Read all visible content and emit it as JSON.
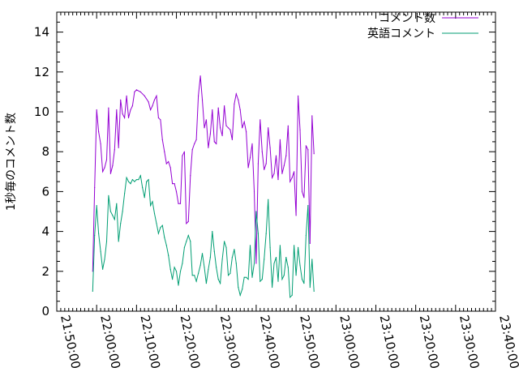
{
  "chart_data": {
    "type": "line",
    "title": "",
    "xlabel": "",
    "ylabel": "1秒毎のコメント数",
    "xlim": [
      "21:50:00",
      "23:40:00"
    ],
    "ylim": [
      0,
      15
    ],
    "x_ticks": [
      "21:50:00",
      "22:00:00",
      "22:10:00",
      "22:20:00",
      "22:30:00",
      "22:40:00",
      "22:50:00",
      "23:00:00",
      "23:10:00",
      "23:20:00",
      "23:30:00",
      "23:40:00"
    ],
    "y_ticks": [
      "0",
      "2",
      "4",
      "6",
      "8",
      "10",
      "12",
      "14"
    ],
    "legend_position": "top-right",
    "grid": false,
    "series": [
      {
        "name": "コメント数",
        "color": "#9400d3",
        "points": [
          [
            "21:59:00",
            2.0
          ],
          [
            "21:59:30",
            6.2
          ],
          [
            "22:00:00",
            10.1
          ],
          [
            "22:00:30",
            9.0
          ],
          [
            "22:01:00",
            8.4
          ],
          [
            "22:01:30",
            7.0
          ],
          [
            "22:02:00",
            7.2
          ],
          [
            "22:02:30",
            7.6
          ],
          [
            "22:03:00",
            10.2
          ],
          [
            "22:03:30",
            6.9
          ],
          [
            "22:04:00",
            7.3
          ],
          [
            "22:04:30",
            8.1
          ],
          [
            "22:05:00",
            10.1
          ],
          [
            "22:05:30",
            8.2
          ],
          [
            "22:06:00",
            10.6
          ],
          [
            "22:06:30",
            9.9
          ],
          [
            "22:07:00",
            9.7
          ],
          [
            "22:07:30",
            10.8
          ],
          [
            "22:08:00",
            9.7
          ],
          [
            "22:08:30",
            10.1
          ],
          [
            "22:09:00",
            10.3
          ],
          [
            "22:09:30",
            11.0
          ],
          [
            "22:10:00",
            11.1
          ],
          [
            "22:11:00",
            11.0
          ],
          [
            "22:12:00",
            10.8
          ],
          [
            "22:13:00",
            10.5
          ],
          [
            "22:13:30",
            10.1
          ],
          [
            "22:14:00",
            10.3
          ],
          [
            "22:14:30",
            10.6
          ],
          [
            "22:15:00",
            10.8
          ],
          [
            "22:15:30",
            9.7
          ],
          [
            "22:16:00",
            9.6
          ],
          [
            "22:16:30",
            8.6
          ],
          [
            "22:17:00",
            8.0
          ],
          [
            "22:17:30",
            7.4
          ],
          [
            "22:18:00",
            7.5
          ],
          [
            "22:18:30",
            7.2
          ],
          [
            "22:19:00",
            6.4
          ],
          [
            "22:19:30",
            6.4
          ],
          [
            "22:20:00",
            6.0
          ],
          [
            "22:20:30",
            5.4
          ],
          [
            "22:21:00",
            5.4
          ],
          [
            "22:21:30",
            7.8
          ],
          [
            "22:22:00",
            8.0
          ],
          [
            "22:22:30",
            4.4
          ],
          [
            "22:23:00",
            4.5
          ],
          [
            "22:23:30",
            6.8
          ],
          [
            "22:24:00",
            8.1
          ],
          [
            "22:24:30",
            8.4
          ],
          [
            "22:25:00",
            8.6
          ],
          [
            "22:25:30",
            10.8
          ],
          [
            "22:26:00",
            11.8
          ],
          [
            "22:26:30",
            10.6
          ],
          [
            "22:27:00",
            9.2
          ],
          [
            "22:27:30",
            9.6
          ],
          [
            "22:28:00",
            8.2
          ],
          [
            "22:28:30",
            8.9
          ],
          [
            "22:29:00",
            10.1
          ],
          [
            "22:29:30",
            8.5
          ],
          [
            "22:30:00",
            8.4
          ],
          [
            "22:30:30",
            10.2
          ],
          [
            "22:31:00",
            9.2
          ],
          [
            "22:31:30",
            8.8
          ],
          [
            "22:32:00",
            10.3
          ],
          [
            "22:32:30",
            9.3
          ],
          [
            "22:33:00",
            9.2
          ],
          [
            "22:33:30",
            9.1
          ],
          [
            "22:34:00",
            8.6
          ],
          [
            "22:34:30",
            10.4
          ],
          [
            "22:35:00",
            10.9
          ],
          [
            "22:35:30",
            10.6
          ],
          [
            "22:36:00",
            10.1
          ],
          [
            "22:36:30",
            9.2
          ],
          [
            "22:37:00",
            9.5
          ],
          [
            "22:37:30",
            9.0
          ],
          [
            "22:38:00",
            7.2
          ],
          [
            "22:38:30",
            7.7
          ],
          [
            "22:39:00",
            8.4
          ],
          [
            "22:39:30",
            6.0
          ],
          [
            "22:40:00",
            2.4
          ],
          [
            "22:40:30",
            7.4
          ],
          [
            "22:41:00",
            9.6
          ],
          [
            "22:41:30",
            8.0
          ],
          [
            "22:42:00",
            7.1
          ],
          [
            "22:42:30",
            7.4
          ],
          [
            "22:43:00",
            9.2
          ],
          [
            "22:43:30",
            8.2
          ],
          [
            "22:44:00",
            6.7
          ],
          [
            "22:44:30",
            6.9
          ],
          [
            "22:45:00",
            7.8
          ],
          [
            "22:45:30",
            6.6
          ],
          [
            "22:46:00",
            8.6
          ],
          [
            "22:46:30",
            6.9
          ],
          [
            "22:47:00",
            7.3
          ],
          [
            "22:47:30",
            7.8
          ],
          [
            "22:48:00",
            9.3
          ],
          [
            "22:48:30",
            6.5
          ],
          [
            "22:49:00",
            6.7
          ],
          [
            "22:49:30",
            7.0
          ],
          [
            "22:50:00",
            4.8
          ],
          [
            "22:50:30",
            10.8
          ],
          [
            "22:51:00",
            9.1
          ],
          [
            "22:51:30",
            6.0
          ],
          [
            "22:52:00",
            5.7
          ],
          [
            "22:52:30",
            8.3
          ],
          [
            "22:53:00",
            8.1
          ],
          [
            "22:53:30",
            3.4
          ],
          [
            "22:54:00",
            9.8
          ],
          [
            "22:54:30",
            7.9
          ]
        ]
      },
      {
        "name": "英語コメント",
        "color": "#009e73",
        "points": [
          [
            "21:59:00",
            1.0
          ],
          [
            "21:59:30",
            3.8
          ],
          [
            "22:00:00",
            5.3
          ],
          [
            "22:00:30",
            3.9
          ],
          [
            "22:01:00",
            3.0
          ],
          [
            "22:01:30",
            2.1
          ],
          [
            "22:02:00",
            2.6
          ],
          [
            "22:02:30",
            3.5
          ],
          [
            "22:03:00",
            5.8
          ],
          [
            "22:03:30",
            5.0
          ],
          [
            "22:04:00",
            4.8
          ],
          [
            "22:04:30",
            4.6
          ],
          [
            "22:05:00",
            5.4
          ],
          [
            "22:05:30",
            3.5
          ],
          [
            "22:06:00",
            4.4
          ],
          [
            "22:06:30",
            5.0
          ],
          [
            "22:07:00",
            5.9
          ],
          [
            "22:07:30",
            6.7
          ],
          [
            "22:08:00",
            6.5
          ],
          [
            "22:08:30",
            6.4
          ],
          [
            "22:09:00",
            6.6
          ],
          [
            "22:09:30",
            6.5
          ],
          [
            "22:10:00",
            6.6
          ],
          [
            "22:10:30",
            6.6
          ],
          [
            "22:11:00",
            6.8
          ],
          [
            "22:11:30",
            6.2
          ],
          [
            "22:12:00",
            5.7
          ],
          [
            "22:12:30",
            6.5
          ],
          [
            "22:13:00",
            6.6
          ],
          [
            "22:13:30",
            5.3
          ],
          [
            "22:14:00",
            5.5
          ],
          [
            "22:14:30",
            4.9
          ],
          [
            "22:15:00",
            4.4
          ],
          [
            "22:15:30",
            3.9
          ],
          [
            "22:16:00",
            4.2
          ],
          [
            "22:16:30",
            4.3
          ],
          [
            "22:17:00",
            3.7
          ],
          [
            "22:17:30",
            3.3
          ],
          [
            "22:18:00",
            2.8
          ],
          [
            "22:18:30",
            2.1
          ],
          [
            "22:19:00",
            1.6
          ],
          [
            "22:19:30",
            2.2
          ],
          [
            "22:20:00",
            2.0
          ],
          [
            "22:20:30",
            1.3
          ],
          [
            "22:21:00",
            2.0
          ],
          [
            "22:21:30",
            2.4
          ],
          [
            "22:22:00",
            3.2
          ],
          [
            "22:22:30",
            3.5
          ],
          [
            "22:23:00",
            3.8
          ],
          [
            "22:23:30",
            3.5
          ],
          [
            "22:24:00",
            1.8
          ],
          [
            "22:24:30",
            1.8
          ],
          [
            "22:25:00",
            1.5
          ],
          [
            "22:25:30",
            1.9
          ],
          [
            "22:26:00",
            2.3
          ],
          [
            "22:26:30",
            2.9
          ],
          [
            "22:27:00",
            2.2
          ],
          [
            "22:27:30",
            1.4
          ],
          [
            "22:28:00",
            2.1
          ],
          [
            "22:28:30",
            2.7
          ],
          [
            "22:29:00",
            4.0
          ],
          [
            "22:29:30",
            3.0
          ],
          [
            "22:30:00",
            2.2
          ],
          [
            "22:30:30",
            1.6
          ],
          [
            "22:31:00",
            1.4
          ],
          [
            "22:31:30",
            2.6
          ],
          [
            "22:32:00",
            3.5
          ],
          [
            "22:32:30",
            3.2
          ],
          [
            "22:33:00",
            1.8
          ],
          [
            "22:33:30",
            1.9
          ],
          [
            "22:34:00",
            2.7
          ],
          [
            "22:34:30",
            3.1
          ],
          [
            "22:35:00",
            2.4
          ],
          [
            "22:35:30",
            1.2
          ],
          [
            "22:36:00",
            0.8
          ],
          [
            "22:36:30",
            1.1
          ],
          [
            "22:37:00",
            1.7
          ],
          [
            "22:37:30",
            1.7
          ],
          [
            "22:38:00",
            1.6
          ],
          [
            "22:38:30",
            3.3
          ],
          [
            "22:39:00",
            1.7
          ],
          [
            "22:39:30",
            2.4
          ],
          [
            "22:40:00",
            5.0
          ],
          [
            "22:40:30",
            3.9
          ],
          [
            "22:41:00",
            1.5
          ],
          [
            "22:41:30",
            1.6
          ],
          [
            "22:42:00",
            2.6
          ],
          [
            "22:42:30",
            3.9
          ],
          [
            "22:43:00",
            5.6
          ],
          [
            "22:43:30",
            3.2
          ],
          [
            "22:44:00",
            1.2
          ],
          [
            "22:44:30",
            2.4
          ],
          [
            "22:45:00",
            2.7
          ],
          [
            "22:45:30",
            1.5
          ],
          [
            "22:46:00",
            3.3
          ],
          [
            "22:46:30",
            1.6
          ],
          [
            "22:47:00",
            1.8
          ],
          [
            "22:47:30",
            2.7
          ],
          [
            "22:48:00",
            2.2
          ],
          [
            "22:48:30",
            0.7
          ],
          [
            "22:49:00",
            0.8
          ],
          [
            "22:49:30",
            3.3
          ],
          [
            "22:50:00",
            1.8
          ],
          [
            "22:50:30",
            3.2
          ],
          [
            "22:51:00",
            2.3
          ],
          [
            "22:51:30",
            1.6
          ],
          [
            "22:52:00",
            1.4
          ],
          [
            "22:52:30",
            3.8
          ],
          [
            "22:53:00",
            5.3
          ],
          [
            "22:53:30",
            1.2
          ],
          [
            "22:54:00",
            2.6
          ],
          [
            "22:54:30",
            1.0
          ]
        ]
      }
    ]
  }
}
